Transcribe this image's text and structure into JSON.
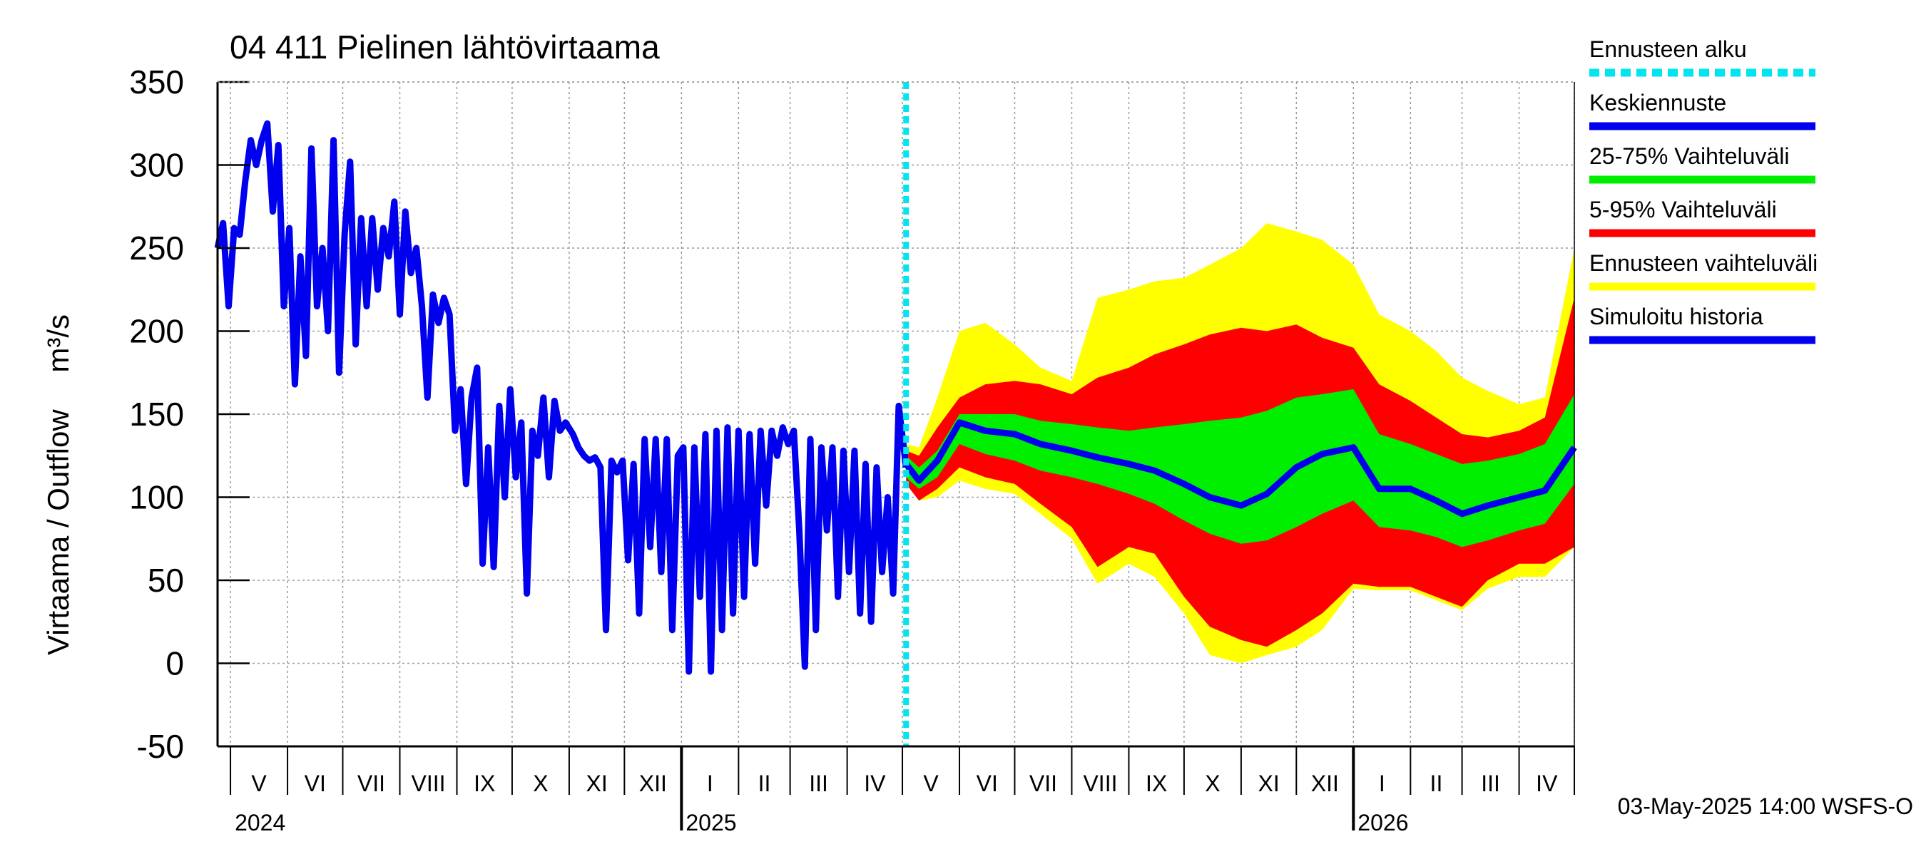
{
  "chart_data": {
    "type": "area",
    "title": "04 411 Pielinen lähtövirtaama",
    "ylabel": "Virtaama / Outflow",
    "yunit": "m³/s",
    "ylim": [
      -50,
      350
    ],
    "yticks": [
      -50,
      0,
      50,
      100,
      150,
      200,
      250,
      300,
      350
    ],
    "xlim": [
      "2024-04-24",
      "2026-05-01"
    ],
    "grid": true,
    "forecast_start": "2025-05-03",
    "footer": "03-May-2025 14:00 WSFS-O",
    "months": [
      "V",
      "VI",
      "VII",
      "VIII",
      "IX",
      "X",
      "XI",
      "XII",
      "I",
      "II",
      "III",
      "IV",
      "V",
      "VI",
      "VII",
      "VIII",
      "IX",
      "X",
      "XI",
      "XII",
      "I",
      "II",
      "III",
      "IV"
    ],
    "years": [
      {
        "label": "2024",
        "date": "2024-05-01"
      },
      {
        "label": "2025",
        "date": "2025-01-01"
      },
      {
        "label": "2026",
        "date": "2026-01-01"
      }
    ],
    "legend": {
      "placement": "right",
      "entries": [
        {
          "label": "Ennusteen alku",
          "color": "#00e5ee",
          "style": "dashed"
        },
        {
          "label": "Keskiennuste",
          "color": "#0000ee",
          "style": "solid"
        },
        {
          "label": "25-75% Vaihteluväli",
          "color": "#00ee00",
          "style": "solid"
        },
        {
          "label": "5-95% Vaihteluväli",
          "color": "#ff0000",
          "style": "solid"
        },
        {
          "label": "Ennusteen vaihteluväli",
          "color": "#ffff00",
          "style": "solid"
        },
        {
          "label": "Simuloitu historia",
          "color": "#0000ee",
          "style": "solid"
        }
      ]
    },
    "history": {
      "name": "Simuloitu historia",
      "color": "#0000ee",
      "points": [
        [
          "2024-04-24",
          250
        ],
        [
          "2024-04-27",
          265
        ],
        [
          "2024-04-30",
          215
        ],
        [
          "2024-05-03",
          262
        ],
        [
          "2024-05-06",
          258
        ],
        [
          "2024-05-09",
          290
        ],
        [
          "2024-05-12",
          315
        ],
        [
          "2024-05-15",
          300
        ],
        [
          "2024-05-18",
          315
        ],
        [
          "2024-05-21",
          325
        ],
        [
          "2024-05-24",
          272
        ],
        [
          "2024-05-27",
          312
        ],
        [
          "2024-05-30",
          215
        ],
        [
          "2024-06-02",
          262
        ],
        [
          "2024-06-05",
          168
        ],
        [
          "2024-06-08",
          245
        ],
        [
          "2024-06-11",
          185
        ],
        [
          "2024-06-14",
          310
        ],
        [
          "2024-06-17",
          215
        ],
        [
          "2024-06-20",
          250
        ],
        [
          "2024-06-23",
          200
        ],
        [
          "2024-06-26",
          315
        ],
        [
          "2024-06-29",
          175
        ],
        [
          "2024-07-02",
          258
        ],
        [
          "2024-07-05",
          302
        ],
        [
          "2024-07-08",
          192
        ],
        [
          "2024-07-11",
          268
        ],
        [
          "2024-07-14",
          215
        ],
        [
          "2024-07-17",
          268
        ],
        [
          "2024-07-20",
          225
        ],
        [
          "2024-07-23",
          262
        ],
        [
          "2024-07-26",
          245
        ],
        [
          "2024-07-29",
          278
        ],
        [
          "2024-08-01",
          210
        ],
        [
          "2024-08-04",
          272
        ],
        [
          "2024-08-07",
          235
        ],
        [
          "2024-08-10",
          250
        ],
        [
          "2024-08-13",
          215
        ],
        [
          "2024-08-16",
          160
        ],
        [
          "2024-08-19",
          222
        ],
        [
          "2024-08-22",
          205
        ],
        [
          "2024-08-25",
          220
        ],
        [
          "2024-08-28",
          210
        ],
        [
          "2024-08-31",
          140
        ],
        [
          "2024-09-03",
          165
        ],
        [
          "2024-09-06",
          108
        ],
        [
          "2024-09-09",
          160
        ],
        [
          "2024-09-12",
          178
        ],
        [
          "2024-09-15",
          60
        ],
        [
          "2024-09-18",
          130
        ],
        [
          "2024-09-21",
          58
        ],
        [
          "2024-09-24",
          155
        ],
        [
          "2024-09-27",
          100
        ],
        [
          "2024-09-30",
          165
        ],
        [
          "2024-10-03",
          112
        ],
        [
          "2024-10-06",
          145
        ],
        [
          "2024-10-09",
          42
        ],
        [
          "2024-10-12",
          140
        ],
        [
          "2024-10-15",
          125
        ],
        [
          "2024-10-18",
          160
        ],
        [
          "2024-10-21",
          112
        ],
        [
          "2024-10-24",
          158
        ],
        [
          "2024-10-27",
          140
        ],
        [
          "2024-10-30",
          145
        ],
        [
          "2024-11-03",
          138
        ],
        [
          "2024-11-06",
          130
        ],
        [
          "2024-11-09",
          125
        ],
        [
          "2024-11-12",
          122
        ],
        [
          "2024-11-15",
          124
        ],
        [
          "2024-11-18",
          118
        ],
        [
          "2024-11-21",
          20
        ],
        [
          "2024-11-24",
          122
        ],
        [
          "2024-11-27",
          115
        ],
        [
          "2024-11-30",
          122
        ],
        [
          "2024-12-03",
          62
        ],
        [
          "2024-12-06",
          120
        ],
        [
          "2024-12-09",
          30
        ],
        [
          "2024-12-12",
          135
        ],
        [
          "2024-12-15",
          70
        ],
        [
          "2024-12-18",
          135
        ],
        [
          "2024-12-21",
          55
        ],
        [
          "2024-12-24",
          135
        ],
        [
          "2024-12-27",
          20
        ],
        [
          "2024-12-30",
          125
        ],
        [
          "2025-01-02",
          130
        ],
        [
          "2025-01-05",
          -5
        ],
        [
          "2025-01-08",
          130
        ],
        [
          "2025-01-11",
          40
        ],
        [
          "2025-01-14",
          138
        ],
        [
          "2025-01-17",
          -5
        ],
        [
          "2025-01-20",
          140
        ],
        [
          "2025-01-23",
          20
        ],
        [
          "2025-01-26",
          142
        ],
        [
          "2025-01-29",
          30
        ],
        [
          "2025-02-01",
          140
        ],
        [
          "2025-02-04",
          40
        ],
        [
          "2025-02-07",
          138
        ],
        [
          "2025-02-10",
          60
        ],
        [
          "2025-02-13",
          140
        ],
        [
          "2025-02-16",
          95
        ],
        [
          "2025-02-19",
          140
        ],
        [
          "2025-02-22",
          125
        ],
        [
          "2025-02-25",
          142
        ],
        [
          "2025-02-28",
          132
        ],
        [
          "2025-03-03",
          140
        ],
        [
          "2025-03-06",
          80
        ],
        [
          "2025-03-09",
          -2
        ],
        [
          "2025-03-12",
          135
        ],
        [
          "2025-03-15",
          20
        ],
        [
          "2025-03-18",
          130
        ],
        [
          "2025-03-21",
          80
        ],
        [
          "2025-03-24",
          130
        ],
        [
          "2025-03-27",
          40
        ],
        [
          "2025-03-30",
          128
        ],
        [
          "2025-04-02",
          55
        ],
        [
          "2025-04-05",
          128
        ],
        [
          "2025-04-08",
          30
        ],
        [
          "2025-04-11",
          120
        ],
        [
          "2025-04-14",
          25
        ],
        [
          "2025-04-17",
          118
        ],
        [
          "2025-04-20",
          55
        ],
        [
          "2025-04-23",
          100
        ],
        [
          "2025-04-26",
          42
        ],
        [
          "2025-04-29",
          155
        ],
        [
          "2025-05-03",
          118
        ]
      ]
    },
    "forecast": {
      "dates": [
        "2025-05-03",
        "2025-05-10",
        "2025-05-20",
        "2025-06-01",
        "2025-06-15",
        "2025-07-01",
        "2025-07-15",
        "2025-08-01",
        "2025-08-15",
        "2025-09-01",
        "2025-09-15",
        "2025-10-01",
        "2025-10-15",
        "2025-11-01",
        "2025-11-15",
        "2025-12-01",
        "2025-12-15",
        "2026-01-01",
        "2026-01-15",
        "2026-02-01",
        "2026-02-15",
        "2026-03-01",
        "2026-03-15",
        "2026-04-01",
        "2026-04-15",
        "2026-05-01"
      ],
      "median": {
        "name": "Keskiennuste",
        "color": "#0000ee",
        "values": [
          120,
          110,
          122,
          145,
          140,
          138,
          132,
          128,
          124,
          120,
          116,
          108,
          100,
          95,
          102,
          118,
          126,
          130,
          105,
          105,
          98,
          90,
          95,
          100,
          104,
          130
        ]
      },
      "p25_75": {
        "name": "25-75% Vaihteluväli",
        "color": "#00ee00",
        "lower": [
          112,
          105,
          112,
          132,
          126,
          122,
          116,
          112,
          108,
          102,
          96,
          86,
          78,
          72,
          74,
          82,
          90,
          98,
          82,
          80,
          76,
          70,
          74,
          80,
          84,
          108
        ],
        "upper": [
          125,
          118,
          128,
          150,
          150,
          150,
          146,
          144,
          142,
          140,
          142,
          144,
          146,
          148,
          152,
          160,
          162,
          165,
          138,
          132,
          126,
          120,
          122,
          126,
          132,
          162
        ]
      },
      "p5_95": {
        "name": "5-95% Vaihteluväli",
        "color": "#ff0000",
        "lower": [
          108,
          98,
          105,
          118,
          112,
          108,
          96,
          82,
          58,
          70,
          66,
          40,
          22,
          14,
          10,
          20,
          30,
          48,
          46,
          46,
          40,
          34,
          50,
          60,
          60,
          70
        ],
        "upper": [
          128,
          125,
          142,
          160,
          168,
          170,
          168,
          162,
          172,
          178,
          186,
          192,
          198,
          202,
          200,
          204,
          196,
          190,
          168,
          158,
          148,
          138,
          136,
          140,
          148,
          220
        ]
      },
      "full": {
        "name": "Ennusteen vaihteluväli",
        "color": "#ffff00",
        "lower": [
          108,
          98,
          100,
          110,
          105,
          102,
          90,
          75,
          48,
          60,
          52,
          30,
          5,
          0,
          5,
          10,
          20,
          45,
          44,
          44,
          38,
          32,
          45,
          52,
          52,
          70
        ],
        "upper": [
          132,
          130,
          160,
          200,
          205,
          192,
          178,
          170,
          220,
          225,
          230,
          232,
          240,
          250,
          265,
          260,
          255,
          240,
          210,
          200,
          188,
          172,
          164,
          156,
          160,
          250
        ]
      }
    }
  }
}
